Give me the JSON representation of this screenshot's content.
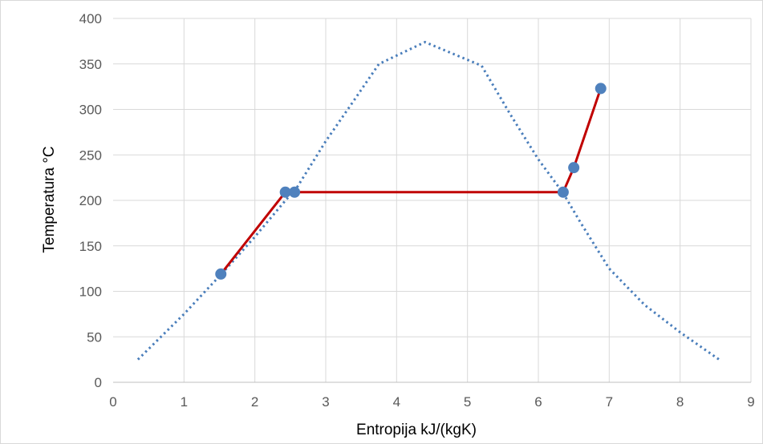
{
  "chart_data": {
    "type": "scatter",
    "title": "",
    "xlabel": "Entropija kJ/(kgK)",
    "ylabel": "Temperatura °C",
    "xlim": [
      0,
      9
    ],
    "ylim": [
      0,
      400
    ],
    "x_ticks": [
      "0",
      "1",
      "2",
      "3",
      "4",
      "5",
      "6",
      "7",
      "8",
      "9"
    ],
    "y_ticks": [
      "0",
      "50",
      "100",
      "150",
      "200",
      "250",
      "300",
      "350",
      "400"
    ],
    "grid": true,
    "legend": "none",
    "series": [
      {
        "style": "dotted-line",
        "color": "#4a7ebb",
        "points": [
          [
            0.35,
            25
          ],
          [
            1.0,
            75
          ],
          [
            1.6,
            125
          ],
          [
            2.0,
            160
          ],
          [
            2.4,
            197
          ],
          [
            2.6,
            215
          ],
          [
            3.0,
            265
          ],
          [
            3.4,
            310
          ],
          [
            3.75,
            350
          ],
          [
            4.4,
            374
          ],
          [
            5.2,
            348
          ],
          [
            5.6,
            295
          ],
          [
            6.0,
            245
          ],
          [
            6.35,
            208
          ],
          [
            6.6,
            175
          ],
          [
            7.0,
            125
          ],
          [
            7.5,
            85
          ],
          [
            8.0,
            55
          ],
          [
            8.55,
            25
          ]
        ]
      },
      {
        "style": "solid-line-with-markers",
        "color": "#c00000",
        "marker_color": "#4f81bd",
        "points": [
          [
            1.52,
            119
          ],
          [
            2.43,
            209
          ],
          [
            2.56,
            209
          ],
          [
            6.35,
            209
          ],
          [
            6.5,
            236
          ],
          [
            6.88,
            323
          ]
        ]
      }
    ]
  }
}
